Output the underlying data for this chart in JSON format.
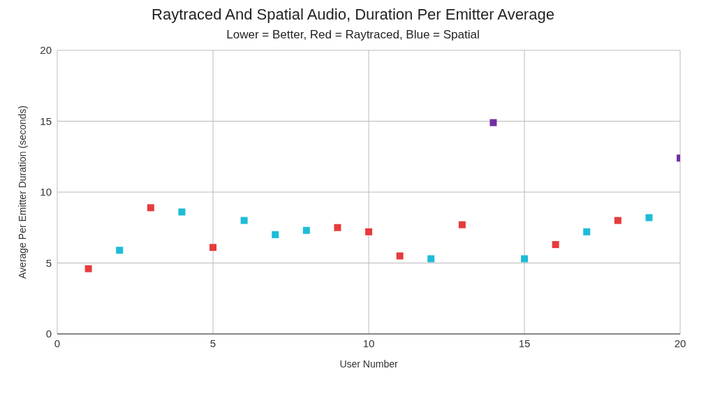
{
  "chart_data": {
    "type": "scatter",
    "title": "Raytraced And Spatial Audio, Duration Per Emitter Average",
    "subtitle": "Lower = Better, Red = Raytraced, Blue = Spatial",
    "xlabel": "User Number",
    "ylabel": "Average Per Emitter Duration (seconds)",
    "series": [
      {
        "color": "#e63b3b",
        "x": [
          1,
          3,
          5,
          9,
          10,
          11,
          13,
          16,
          18
        ],
        "values": [
          4.6,
          8.9,
          6.1,
          7.5,
          7.2,
          5.5,
          7.7,
          6.3,
          8.0
        ]
      },
      {
        "color": "#1ebcd8",
        "x": [
          2,
          4,
          6,
          7,
          8,
          12,
          15,
          17,
          19
        ],
        "values": [
          5.9,
          8.6,
          8.0,
          7.0,
          7.3,
          5.3,
          5.3,
          7.2,
          8.2
        ]
      },
      {
        "color": "#7030a0",
        "x": [
          14,
          20
        ],
        "values": [
          14.9,
          12.4
        ]
      }
    ],
    "xlim": [
      0,
      20
    ],
    "xticks": [
      0,
      5,
      10,
      15,
      20
    ],
    "ylim": [
      0,
      20
    ],
    "yticks": [
      0,
      5,
      10,
      15,
      20
    ],
    "grid": true,
    "legend": false,
    "marker": "square"
  }
}
